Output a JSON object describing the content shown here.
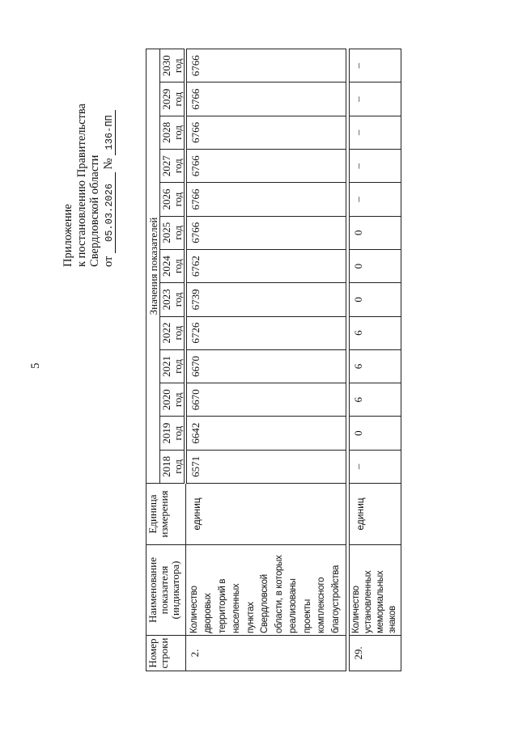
{
  "page_number": "5",
  "appendix": {
    "line1": "Приложение",
    "line2": "к постановлению Правительства",
    "line3": "Свердловской области",
    "from_label": "от",
    "date": "05.03.2026",
    "number_label": "№",
    "number": "136-ПП"
  },
  "table": {
    "headers": {
      "row_number": "Номер строки",
      "indicator_name": "Наименование показателя (индикатора)",
      "unit": "Единица измерения",
      "values_group": "Значения показателей",
      "years": [
        "2018 год",
        "2019 год",
        "2020 год",
        "2021 год",
        "2022 год",
        "2023 год",
        "2024 год",
        "2025 год",
        "2026 год",
        "2027 год",
        "2028 год",
        "2029 год",
        "2030 год"
      ]
    },
    "rows": [
      {
        "number": "2.",
        "name_lines": [
          "Количество",
          "дворовых",
          "территорий в",
          "населенных",
          "пунктах",
          "Свердловской",
          "области, в которых",
          "реализованы",
          "проекты",
          "комплексного",
          "благоустройства"
        ],
        "unit": "единиц",
        "values": [
          "6571",
          "6642",
          "6670",
          "6670",
          "6726",
          "6739",
          "6762",
          "6766",
          "6766",
          "6766",
          "6766",
          "6766",
          "6766"
        ]
      },
      {
        "number": "29.",
        "name_lines": [
          "Количество",
          "установленных",
          "мемориальных",
          "знаков"
        ],
        "unit": "единиц",
        "values": [
          "–",
          "0",
          "6",
          "6",
          "6",
          "0",
          "0",
          "0",
          "–",
          "–",
          "–",
          "–",
          "–"
        ]
      }
    ]
  }
}
